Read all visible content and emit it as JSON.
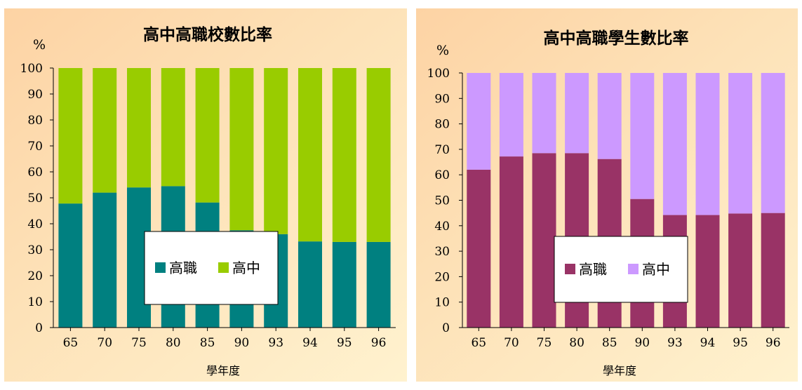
{
  "chart_data": [
    {
      "type": "bar",
      "stacked": true,
      "title": "高中高職校數比率",
      "unit": "%",
      "xlabel": "學年度",
      "ylabel": "",
      "categories": [
        "65",
        "70",
        "75",
        "80",
        "85",
        "90",
        "93",
        "94",
        "95",
        "96"
      ],
      "ylim": [
        0,
        100
      ],
      "yticks": [
        0,
        10,
        20,
        30,
        40,
        50,
        60,
        70,
        80,
        90,
        100
      ],
      "series": [
        {
          "name": "高職",
          "color": "#008080",
          "values": [
            47.8,
            52,
            54,
            54.5,
            48.2,
            37.5,
            36,
            33.2,
            33,
            33
          ]
        },
        {
          "name": "高中",
          "color": "#99cc00",
          "values": [
            52.2,
            48,
            46,
            45.5,
            51.8,
            62.5,
            64,
            66.8,
            67,
            67
          ]
        }
      ],
      "legend_position": "bottom-right"
    },
    {
      "type": "bar",
      "stacked": true,
      "title": "高中高職學生數比率",
      "unit": "%",
      "xlabel": "學年度",
      "ylabel": "",
      "categories": [
        "65",
        "70",
        "75",
        "80",
        "85",
        "90",
        "93",
        "94",
        "95",
        "96"
      ],
      "ylim": [
        0,
        100
      ],
      "yticks": [
        0,
        10,
        20,
        30,
        40,
        50,
        60,
        70,
        80,
        90,
        100
      ],
      "series": [
        {
          "name": "高職",
          "color": "#993366",
          "values": [
            62,
            67.2,
            68.5,
            68.5,
            66.2,
            50.5,
            44.2,
            44.2,
            44.8,
            45
          ]
        },
        {
          "name": "高中",
          "color": "#cc99ff",
          "values": [
            38,
            32.8,
            31.5,
            31.5,
            33.8,
            49.5,
            55.8,
            55.8,
            55.2,
            55
          ]
        }
      ],
      "legend_position": "bottom-right"
    }
  ]
}
